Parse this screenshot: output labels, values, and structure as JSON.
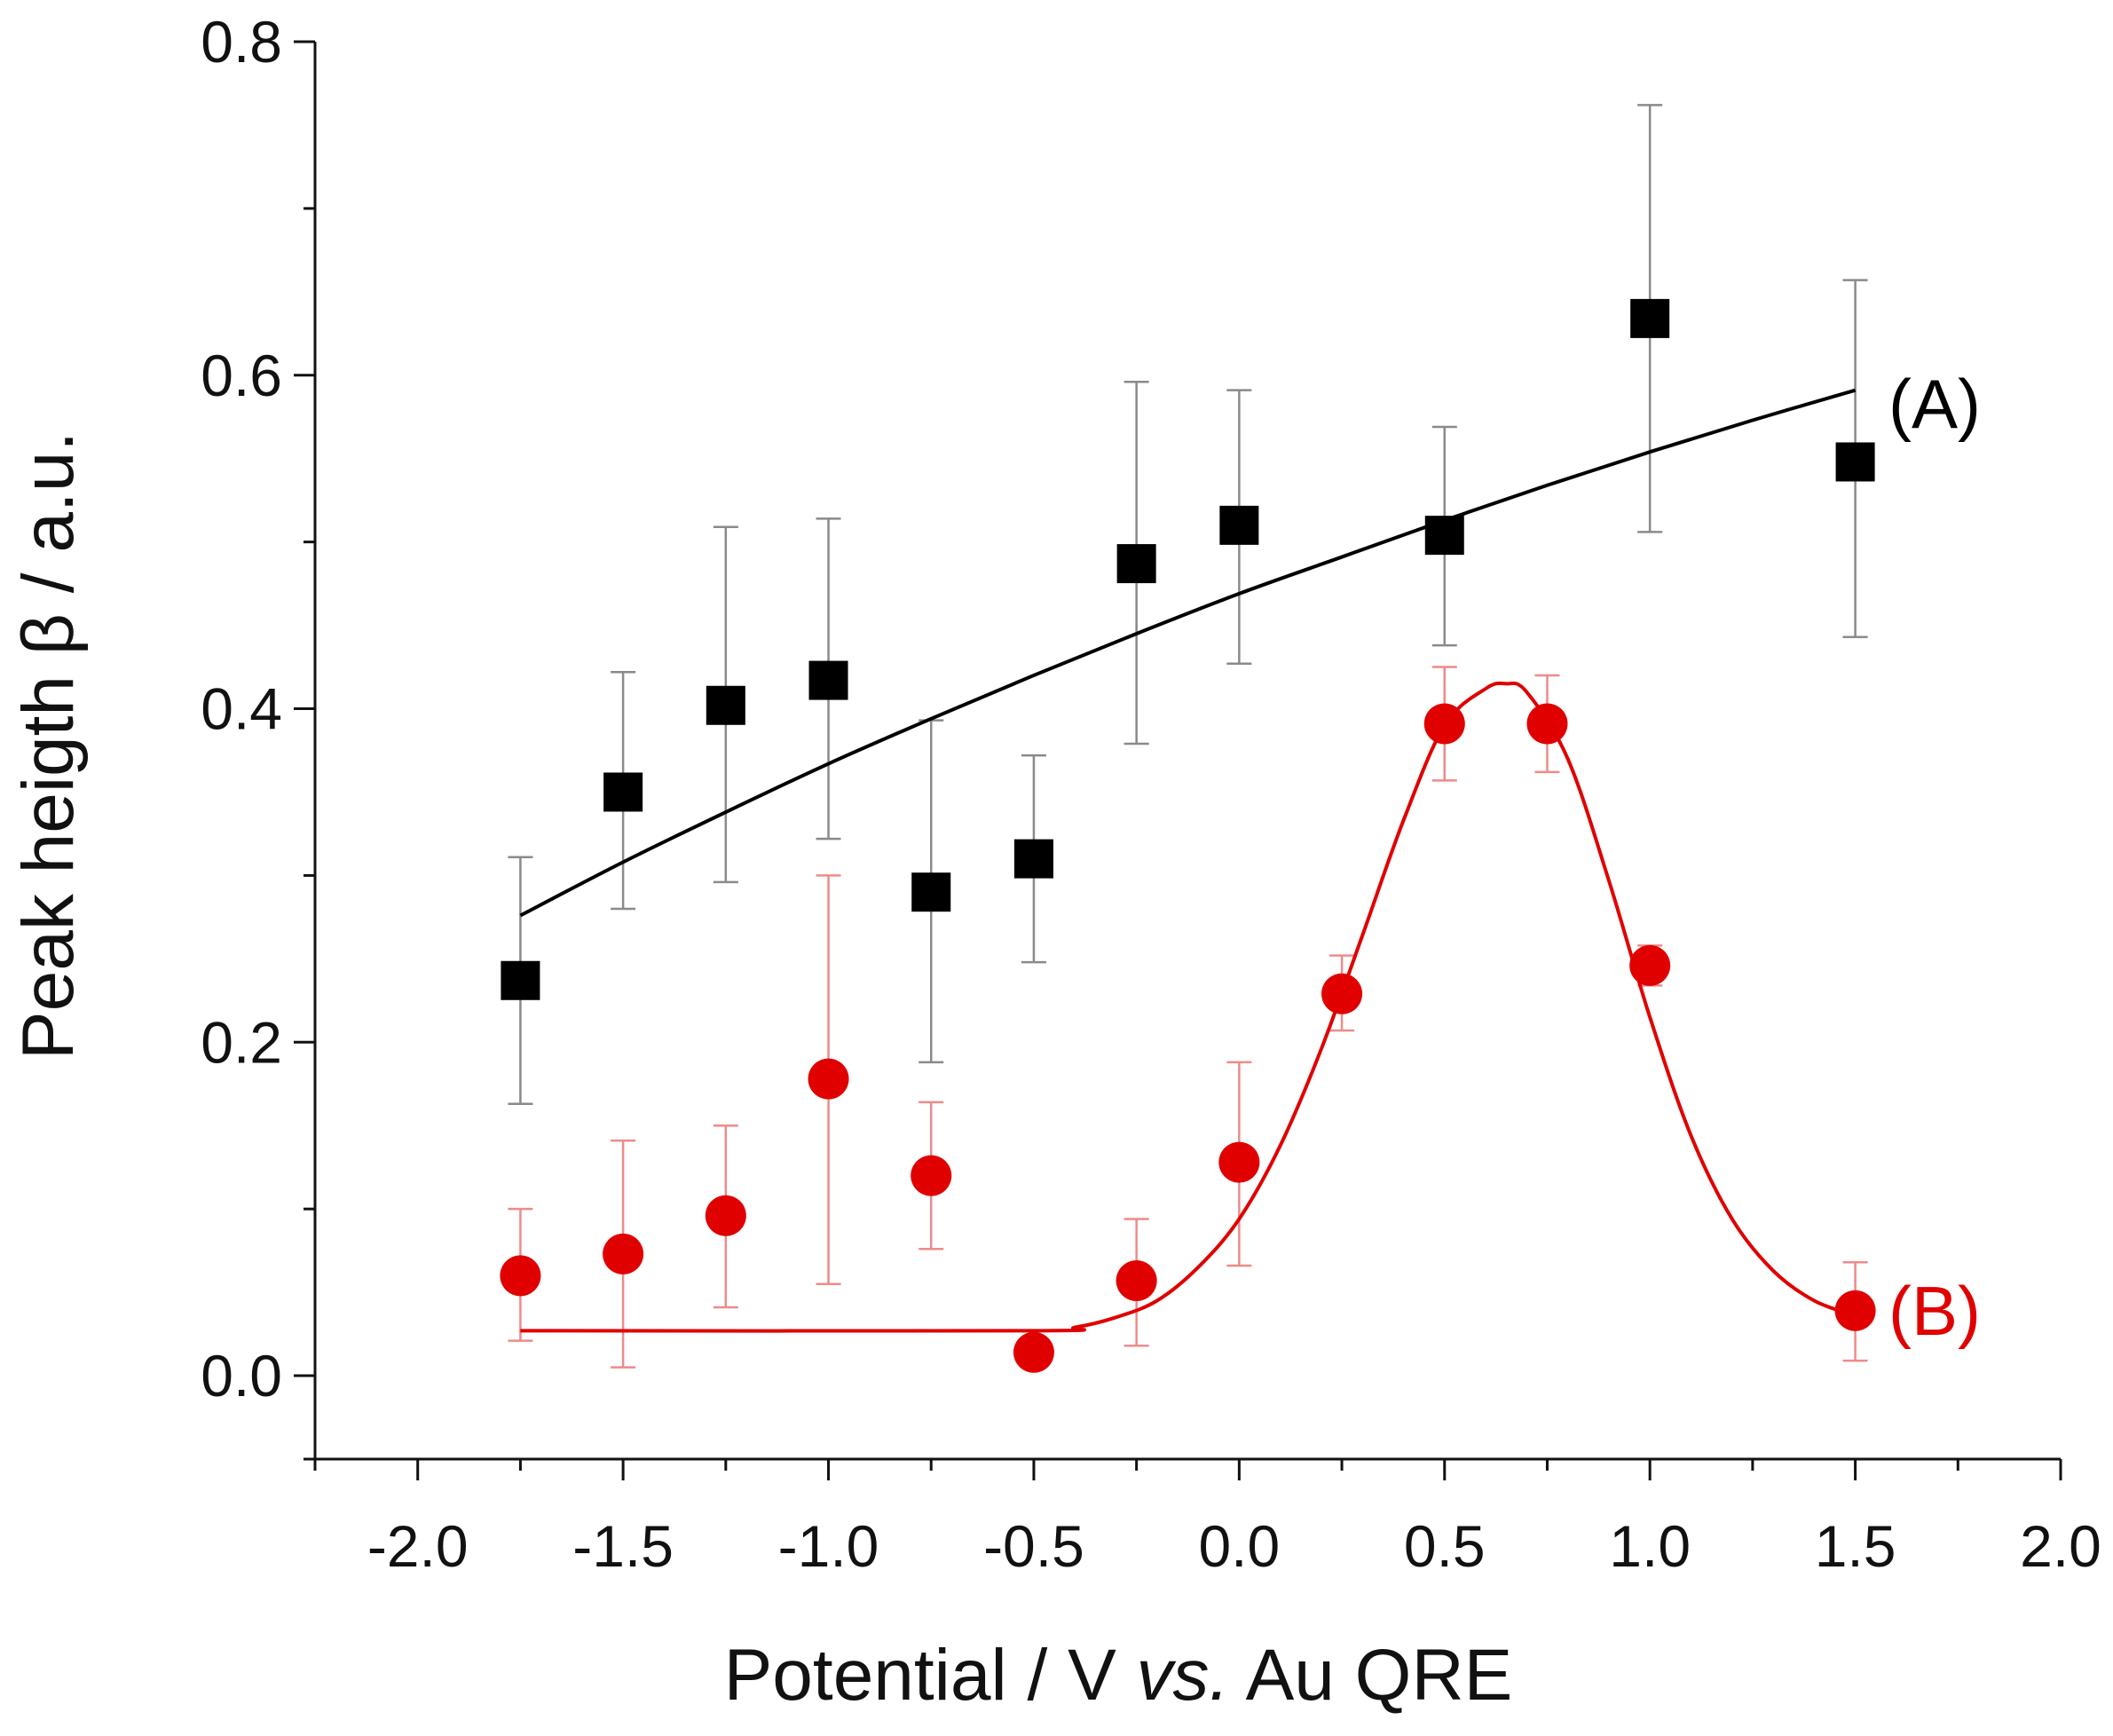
{
  "chart_data": {
    "type": "scatter",
    "title": "",
    "xlabel_parts": [
      "Potential / V ",
      "vs.",
      " Au QRE"
    ],
    "ylabel": "Peak heigth β / a.u.",
    "xlim": [
      -2.25,
      2.0
    ],
    "ylim": [
      -0.05,
      0.8
    ],
    "x_ticks": [
      -2.0,
      -1.5,
      -1.0,
      -0.5,
      0.0,
      0.5,
      1.0,
      1.5,
      2.0
    ],
    "x_tick_labels": [
      "-2.0",
      "-1.5",
      "-1.0",
      "-0.5",
      "0.0",
      "0.5",
      "1.0",
      "1.5",
      "2.0"
    ],
    "x_minor_ticks": [
      -2.25,
      -1.75,
      -1.25,
      -0.75,
      -0.25,
      0.25,
      0.75,
      1.25,
      1.75
    ],
    "y_ticks": [
      0.0,
      0.2,
      0.4,
      0.6,
      0.8
    ],
    "y_tick_labels": [
      "0.0",
      "0.2",
      "0.4",
      "0.6",
      "0.8"
    ],
    "y_minor_ticks": [
      -0.05,
      0.1,
      0.3,
      0.5,
      0.7
    ],
    "grid": false,
    "series": [
      {
        "name": "(A)",
        "marker": "square",
        "color": "#000000",
        "error_color": "#8a8a8a",
        "x": [
          -1.75,
          -1.5,
          -1.25,
          -1.0,
          -0.75,
          -0.5,
          -0.25,
          0.0,
          0.5,
          1.0,
          1.5
        ],
        "y": [
          0.237,
          0.35,
          0.402,
          0.417,
          0.29,
          0.31,
          0.487,
          0.51,
          0.504,
          0.634,
          0.548
        ],
        "err_low": [
          0.163,
          0.28,
          0.296,
          0.322,
          0.188,
          0.248,
          0.379,
          0.427,
          0.438,
          0.506,
          0.443
        ],
        "err_high": [
          0.311,
          0.422,
          0.509,
          0.514,
          0.393,
          0.372,
          0.596,
          0.591,
          0.569,
          0.762,
          0.657
        ],
        "fit_x": [
          -1.75,
          -1.5,
          -1.25,
          -1.0,
          -0.75,
          -0.5,
          -0.25,
          0.0,
          0.25,
          0.5,
          0.75,
          1.0,
          1.25,
          1.5
        ],
        "fit_y": [
          0.276,
          0.308,
          0.338,
          0.367,
          0.394,
          0.42,
          0.445,
          0.469,
          0.491,
          0.513,
          0.534,
          0.554,
          0.573,
          0.591
        ]
      },
      {
        "name": "(B)",
        "marker": "circle",
        "color": "#e00000",
        "error_color": "#ef8a8a",
        "x": [
          -1.75,
          -1.5,
          -1.25,
          -1.0,
          -0.75,
          -0.5,
          -0.25,
          0.0,
          0.25,
          0.5,
          0.75,
          1.0,
          1.5
        ],
        "y": [
          0.06,
          0.073,
          0.096,
          0.178,
          0.12,
          0.014,
          0.057,
          0.128,
          0.229,
          0.391,
          0.391,
          0.246,
          0.039
        ],
        "err_low": [
          0.021,
          0.005,
          0.041,
          0.055,
          0.076,
          0.014,
          0.018,
          0.066,
          0.207,
          0.357,
          0.362,
          0.234,
          0.009
        ],
        "err_high": [
          0.1,
          0.141,
          0.15,
          0.3,
          0.164,
          0.014,
          0.094,
          0.188,
          0.252,
          0.425,
          0.42,
          0.258,
          0.068
        ],
        "fit_x": [
          -1.75,
          -0.5,
          -0.4,
          -0.3,
          -0.2,
          -0.1,
          0.0,
          0.1,
          0.2,
          0.3,
          0.4,
          0.5,
          0.6,
          0.65,
          0.7,
          0.8,
          0.9,
          1.0,
          1.1,
          1.2,
          1.3,
          1.4,
          1.5
        ],
        "fit_y": [
          0.027,
          0.027,
          0.029,
          0.035,
          0.045,
          0.065,
          0.094,
          0.138,
          0.196,
          0.264,
          0.333,
          0.39,
          0.412,
          0.415,
          0.41,
          0.37,
          0.297,
          0.215,
          0.144,
          0.094,
          0.063,
          0.045,
          0.036
        ]
      }
    ]
  },
  "colors": {
    "axis": "#111111",
    "series_a": "#000000",
    "series_b": "#e00000"
  }
}
